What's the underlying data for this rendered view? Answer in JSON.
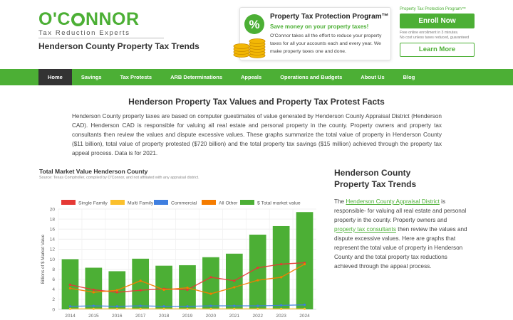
{
  "brand": {
    "name": "O'CONNOR",
    "tagline": "Tax Reduction Experts"
  },
  "header": {
    "subtitle": "Henderson County Property Tax Trends"
  },
  "promo": {
    "title": "Property Tax Protection Program™",
    "subtitle": "Save money on your property taxes!",
    "body": "O'Connor takes all the effort to reduce your property taxes for all your accounts each and every year. We make property taxes one and done."
  },
  "enroll": {
    "kicker": "Property Tax Protection Program™",
    "button": "Enroll Now",
    "note_1": "Free online enrollment in 3 minutes.",
    "note_2": "No cost unless taxes reduced, guaranteed",
    "learn": "Learn More"
  },
  "nav": {
    "items": [
      {
        "label": "Home"
      },
      {
        "label": "Savings"
      },
      {
        "label": "Tax Protests"
      },
      {
        "label": "ARB Determinations"
      },
      {
        "label": "Appeals"
      },
      {
        "label": "Operations and Budgets"
      },
      {
        "label": "About Us"
      },
      {
        "label": "Blog"
      }
    ]
  },
  "main": {
    "title": "Henderson Property Tax Values and Property Tax Protest Facts",
    "intro": "Henderson County property taxes are based on computer guestimates of value generated by Henderson County Appraisal District (Henderson CAD). Henderson CAD is responsible for valuing all real estate and personal property in the county. Property owners and property tax consultants then review the values and dispute excessive values. These graphs summarize the total value of property in Henderson County ($11 billion), total value of property protested ($720 billion) and the total property tax savings ($15 million) achieved through the property tax appeal process. Data is for 2021."
  },
  "chart_meta": {
    "title": "Total Market Value Henderson County",
    "source": "Source: Texas Comptroller, compiled by O'Connor, and not affiliated with any appraisal district."
  },
  "side": {
    "title": "Henderson County Property Tax Trends",
    "p1": "The ",
    "link1": "Henderson County Appraisal District",
    "p2": " is responsible- for valuing all real estate and personal property in the county. Property owners and ",
    "link2": "property tax consultants",
    "p3": " then review the values and dispute excessive values. Here are graphs that represent the total value of property in Henderson County and the total property tax reductions achieved through the appeal process."
  },
  "colors": {
    "brand_green": "#4caf35",
    "nav_active": "#333333",
    "single_family": "#e53935",
    "multi_family": "#fbc02d",
    "commercial": "#3f7fe0",
    "all_other": "#f57c00",
    "total_market": "#4caf35"
  },
  "chart_data": {
    "type": "bar",
    "categories": [
      "2014",
      "2015",
      "2016",
      "2017",
      "2018",
      "2019",
      "2020",
      "2021",
      "2022",
      "2023",
      "2024"
    ],
    "ylabel": "Billions of $ Market Value",
    "ylim": [
      0,
      20
    ],
    "yticks": [
      0,
      2,
      4,
      6,
      8,
      10,
      12,
      14,
      16,
      18,
      20
    ],
    "legend_position": "top",
    "grid": true,
    "series": [
      {
        "name": "Single Family",
        "kind": "line",
        "color": "#e53935",
        "values": [
          4.9,
          3.9,
          3.4,
          3.8,
          4.1,
          3.9,
          6.4,
          5.7,
          8.3,
          9.0,
          9.3
        ]
      },
      {
        "name": "Multi Family",
        "kind": "line",
        "color": "#fbc02d",
        "values": [
          0.1,
          0.1,
          0.1,
          0.1,
          0.1,
          0.1,
          0.1,
          0.1,
          0.1,
          0.1,
          0.1
        ]
      },
      {
        "name": "Commercial",
        "kind": "line",
        "color": "#3f7fe0",
        "values": [
          0.6,
          0.7,
          0.6,
          0.7,
          0.6,
          0.6,
          0.7,
          0.7,
          0.7,
          0.8,
          0.9
        ]
      },
      {
        "name": "All Other",
        "kind": "line",
        "color": "#f57c00",
        "values": [
          4.2,
          3.4,
          3.8,
          5.7,
          3.9,
          4.3,
          3.1,
          4.4,
          5.8,
          6.4,
          9.0
        ]
      },
      {
        "name": "$ Total market value",
        "kind": "bar",
        "color": "#4caf35",
        "values": [
          10.0,
          8.3,
          7.6,
          10.1,
          8.7,
          8.8,
          10.4,
          11.1,
          14.9,
          16.6,
          19.4
        ]
      }
    ]
  }
}
